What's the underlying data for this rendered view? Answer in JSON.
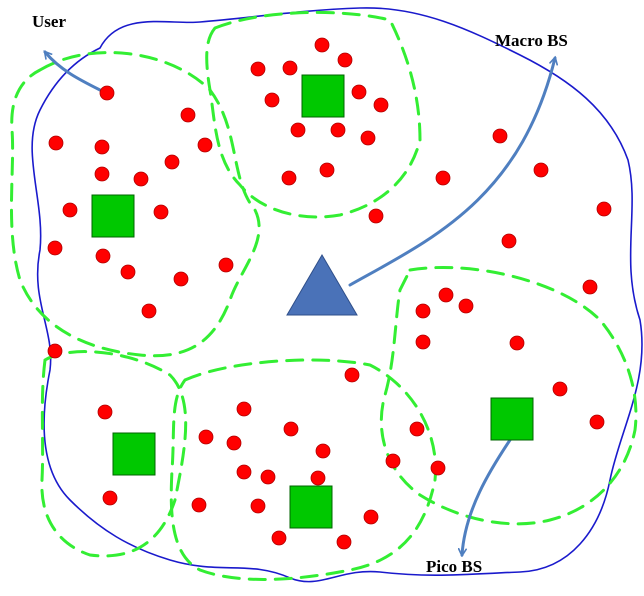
{
  "labels": {
    "user": "User",
    "macro_bs": "Macro BS",
    "pico_bs": "Pico BS"
  },
  "colors": {
    "user_fill": "#ff0000",
    "user_stroke": "#b00000",
    "pico_fill": "#00c800",
    "pico_stroke": "#006400",
    "macro_fill": "#4a72b8",
    "macro_stroke": "#2f4f8a",
    "cluster_dash": "#33ee33",
    "boundary": "#1a1acc",
    "arrow": "#4f7fc0"
  },
  "icons": {
    "user": "red-circle",
    "pico_bs": "green-square",
    "macro_bs": "blue-triangle"
  }
}
